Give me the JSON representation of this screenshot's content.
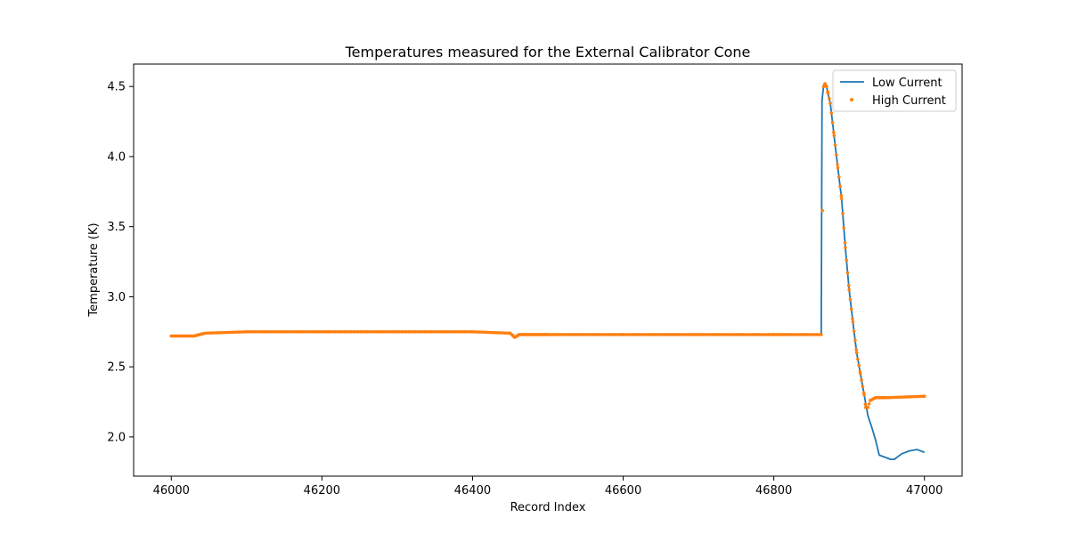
{
  "chart_data": {
    "type": "line",
    "title": "Temperatures measured for the External Calibrator Cone",
    "xlabel": "Record Index",
    "ylabel": "Temperature (K)",
    "xlim": [
      45950,
      47050
    ],
    "ylim": [
      1.72,
      4.66
    ],
    "xticks": [
      46000,
      46200,
      46400,
      46600,
      46800,
      47000
    ],
    "yticks": [
      2.0,
      2.5,
      3.0,
      3.5,
      4.0,
      4.5
    ],
    "ytick_labels": [
      "2.0",
      "2.5",
      "3.0",
      "3.5",
      "4.0",
      "4.5"
    ],
    "grid": false,
    "legend_position": "top-right",
    "series": [
      {
        "name": "Low Current",
        "style": "line",
        "color": "#1f77b4",
        "x": [
          46000,
          46030,
          46045,
          46100,
          46200,
          46300,
          46400,
          46450,
          46456,
          46462,
          46500,
          46600,
          46700,
          46800,
          46863,
          46864,
          46866,
          46868,
          46870,
          46872,
          46875,
          46880,
          46885,
          46890,
          46895,
          46900,
          46905,
          46910,
          46915,
          46920,
          46925,
          46930,
          46935,
          46940,
          46950,
          46955,
          46960,
          46965,
          46970,
          46980,
          46990,
          47000
        ],
        "y": [
          2.72,
          2.72,
          2.74,
          2.75,
          2.75,
          2.75,
          2.75,
          2.74,
          2.71,
          2.73,
          2.73,
          2.73,
          2.73,
          2.73,
          2.73,
          4.4,
          4.5,
          4.52,
          4.5,
          4.45,
          4.38,
          4.15,
          3.92,
          3.7,
          3.35,
          3.05,
          2.82,
          2.6,
          2.45,
          2.3,
          2.15,
          2.07,
          1.98,
          1.87,
          1.85,
          1.84,
          1.84,
          1.86,
          1.88,
          1.9,
          1.91,
          1.89
        ]
      },
      {
        "name": "High Current",
        "style": "scatter",
        "color": "#ff7f0e",
        "x": [
          46000,
          46030,
          46045,
          46100,
          46200,
          46300,
          46400,
          46450,
          46456,
          46462,
          46500,
          46600,
          46700,
          46800,
          46863,
          46866,
          46868,
          46870,
          46872,
          46875,
          46880,
          46885,
          46890,
          46895,
          46900,
          46905,
          46910,
          46915,
          46920,
          46922,
          46925,
          46928,
          46935,
          46950,
          47000
        ],
        "y": [
          2.72,
          2.72,
          2.74,
          2.75,
          2.75,
          2.75,
          2.75,
          2.74,
          2.71,
          2.73,
          2.73,
          2.73,
          2.73,
          2.73,
          2.73,
          4.5,
          4.52,
          4.5,
          4.45,
          4.38,
          4.15,
          3.92,
          3.7,
          3.35,
          3.05,
          2.82,
          2.6,
          2.45,
          2.3,
          2.21,
          2.21,
          2.26,
          2.28,
          2.28,
          2.29
        ]
      }
    ]
  }
}
